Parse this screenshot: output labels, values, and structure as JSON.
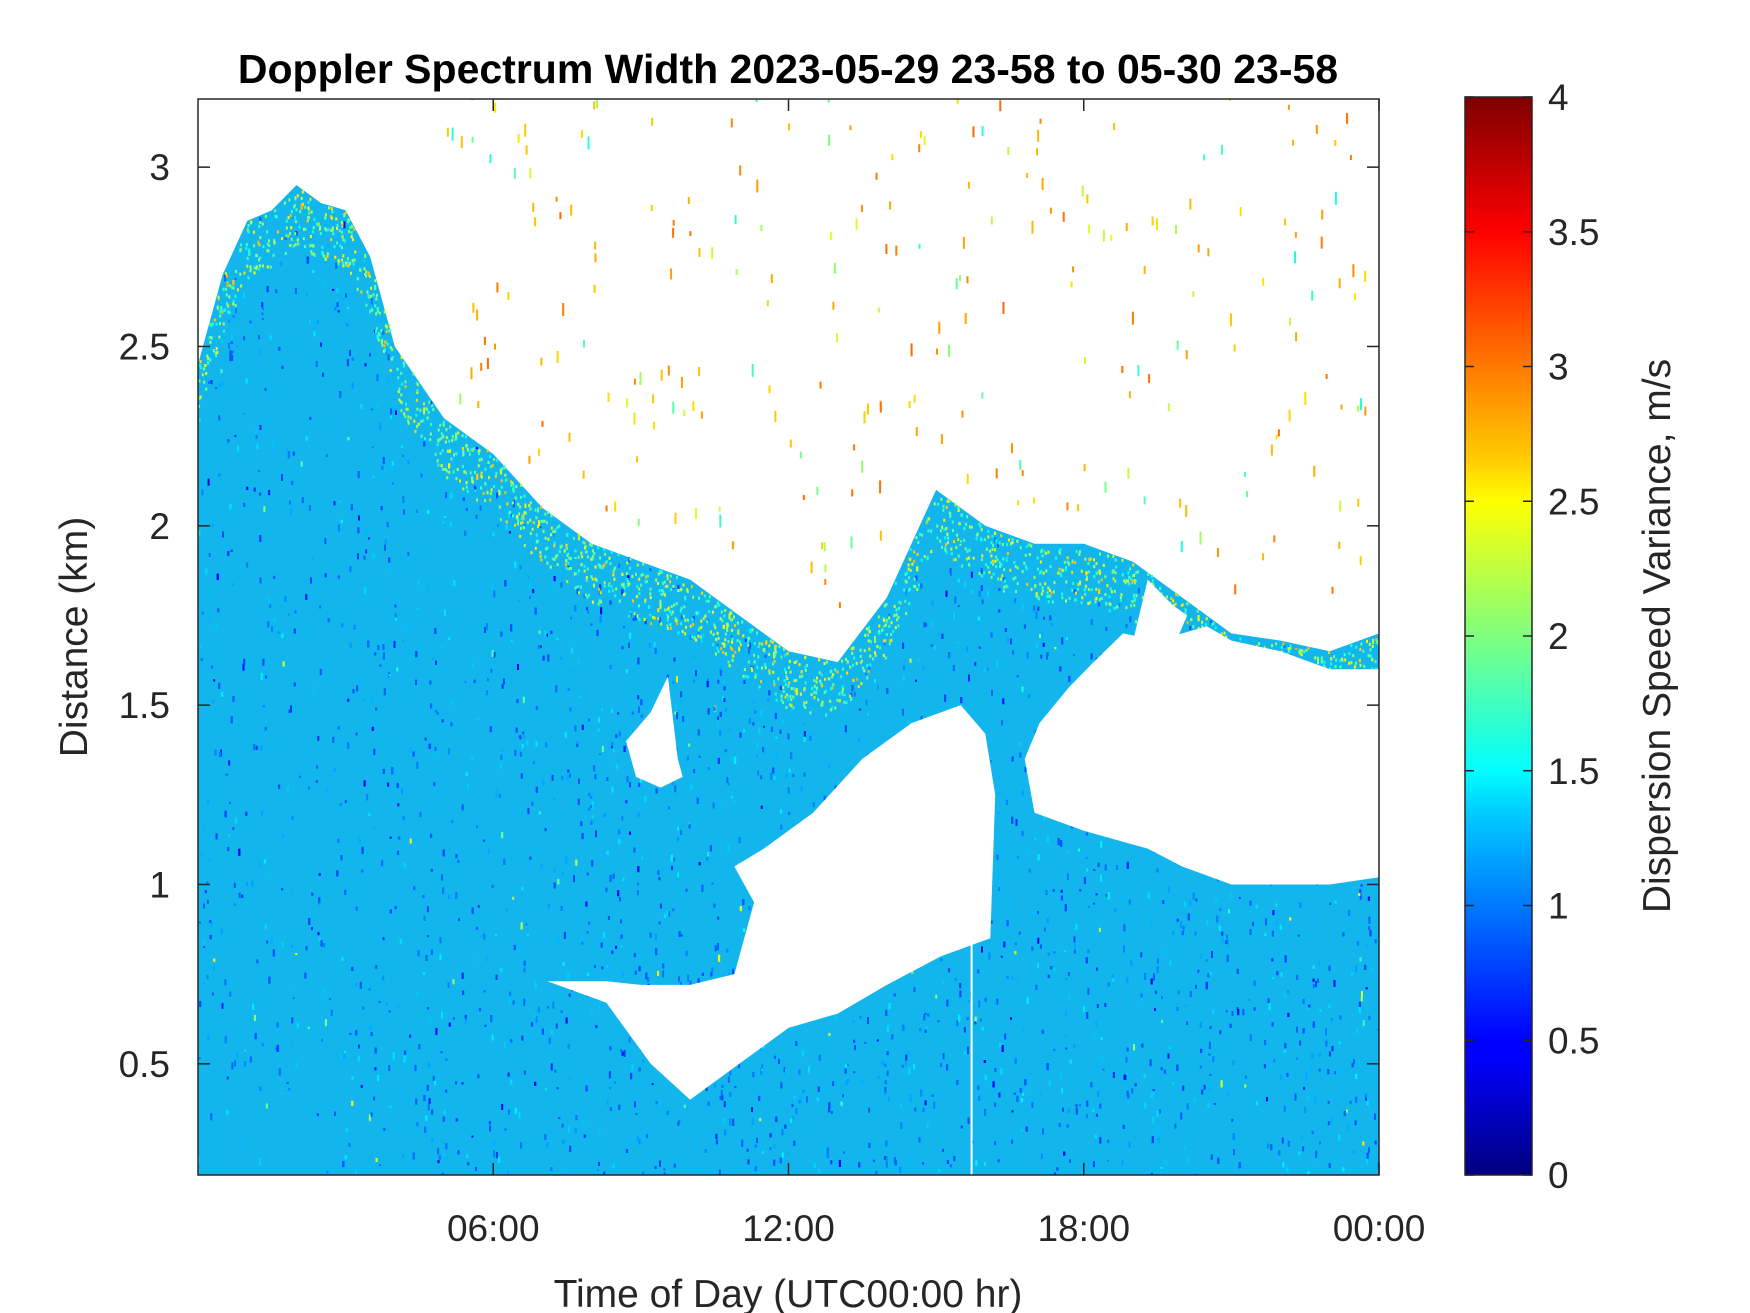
{
  "chart_data": {
    "type": "heatmap",
    "title": "Doppler Spectrum Width 2023-05-29 23-58 to 05-30 23-58",
    "xlabel": "Time of Day (UTC00:00 hr)",
    "ylabel": "Distance (km)",
    "x_range_hours": [
      0,
      24
    ],
    "ylim": [
      0.19,
      3.19
    ],
    "x_ticks": [
      {
        "value": 6,
        "label": "06:00"
      },
      {
        "value": 12,
        "label": "12:00"
      },
      {
        "value": 18,
        "label": "18:00"
      },
      {
        "value": 24,
        "label": "00:00"
      }
    ],
    "y_ticks": [
      {
        "value": 0.5,
        "label": "0.5"
      },
      {
        "value": 1,
        "label": "1"
      },
      {
        "value": 1.5,
        "label": "1.5"
      },
      {
        "value": 2,
        "label": "2"
      },
      {
        "value": 2.5,
        "label": "2.5"
      },
      {
        "value": 3,
        "label": "3"
      }
    ],
    "colorbar": {
      "label": "Dispersion Speed Variance, m/s",
      "colormap": "jet",
      "range": [
        0,
        4
      ],
      "ticks": [
        {
          "value": 0,
          "label": "0"
        },
        {
          "value": 0.5,
          "label": "0.5"
        },
        {
          "value": 1,
          "label": "1"
        },
        {
          "value": 1.5,
          "label": "1.5"
        },
        {
          "value": 2,
          "label": "2"
        },
        {
          "value": 2.5,
          "label": "2.5"
        },
        {
          "value": 3,
          "label": "3"
        },
        {
          "value": 3.5,
          "label": "3.5"
        },
        {
          "value": 4,
          "label": "4"
        }
      ]
    },
    "signal_top_km": [
      [
        0,
        2.45
      ],
      [
        0.5,
        2.7
      ],
      [
        1,
        2.85
      ],
      [
        1.5,
        2.88
      ],
      [
        2,
        2.95
      ],
      [
        2.5,
        2.9
      ],
      [
        3,
        2.88
      ],
      [
        3.5,
        2.75
      ],
      [
        4,
        2.5
      ],
      [
        5,
        2.3
      ],
      [
        6,
        2.2
      ],
      [
        7,
        2.05
      ],
      [
        8,
        1.95
      ],
      [
        9,
        1.9
      ],
      [
        10,
        1.85
      ],
      [
        11,
        1.75
      ],
      [
        12,
        1.65
      ],
      [
        13,
        1.62
      ],
      [
        14,
        1.8
      ],
      [
        15,
        2.1
      ],
      [
        16,
        2.0
      ],
      [
        17,
        1.95
      ],
      [
        18,
        1.95
      ],
      [
        19,
        1.9
      ],
      [
        20,
        1.8
      ],
      [
        21,
        1.7
      ],
      [
        22,
        1.68
      ],
      [
        23,
        1.65
      ],
      [
        24,
        1.7
      ]
    ],
    "gaps": [
      {
        "name": "main-gap",
        "polygon_hours_km": [
          [
            7.1,
            0.73
          ],
          [
            8.3,
            0.67
          ],
          [
            9.2,
            0.5
          ],
          [
            10,
            0.4
          ],
          [
            11,
            0.5
          ],
          [
            12,
            0.6
          ],
          [
            13,
            0.64
          ],
          [
            14,
            0.72
          ],
          [
            15.1,
            0.8
          ],
          [
            16.1,
            0.85
          ],
          [
            16.2,
            1.25
          ],
          [
            16.0,
            1.42
          ],
          [
            15.5,
            1.5
          ],
          [
            14.5,
            1.45
          ],
          [
            13.5,
            1.35
          ],
          [
            12.5,
            1.2
          ],
          [
            11.5,
            1.1
          ],
          [
            10.9,
            1.05
          ],
          [
            11.3,
            0.95
          ],
          [
            10.9,
            0.75
          ],
          [
            10,
            0.72
          ],
          [
            9,
            0.72
          ],
          [
            8.3,
            0.73
          ]
        ]
      },
      {
        "name": "small-gap",
        "polygon_hours_km": [
          [
            8.7,
            1.4
          ],
          [
            9.2,
            1.48
          ],
          [
            9.55,
            1.58
          ],
          [
            9.75,
            1.35
          ],
          [
            9.85,
            1.3
          ],
          [
            9.4,
            1.27
          ],
          [
            8.9,
            1.3
          ]
        ]
      },
      {
        "name": "right-gap",
        "polygon_hours_km": [
          [
            17.0,
            1.2
          ],
          [
            18,
            1.15
          ],
          [
            19.3,
            1.1
          ],
          [
            20,
            1.05
          ],
          [
            21,
            1.0
          ],
          [
            22,
            1.0
          ],
          [
            23,
            1.0
          ],
          [
            24,
            1.02
          ],
          [
            24,
            1.6
          ],
          [
            23,
            1.6
          ],
          [
            22,
            1.65
          ],
          [
            21,
            1.68
          ],
          [
            20.5,
            1.72
          ],
          [
            19.5,
            1.68
          ],
          [
            18.8,
            1.7
          ],
          [
            18.2,
            1.62
          ],
          [
            17.7,
            1.55
          ],
          [
            17.1,
            1.45
          ],
          [
            16.8,
            1.35
          ]
        ]
      },
      {
        "name": "gap-18h",
        "polygon_hours_km": [
          [
            18.9,
            1.62
          ],
          [
            19.3,
            1.85
          ],
          [
            19.8,
            1.78
          ],
          [
            20.1,
            1.75
          ],
          [
            19.7,
            1.62
          ]
        ]
      }
    ]
  }
}
